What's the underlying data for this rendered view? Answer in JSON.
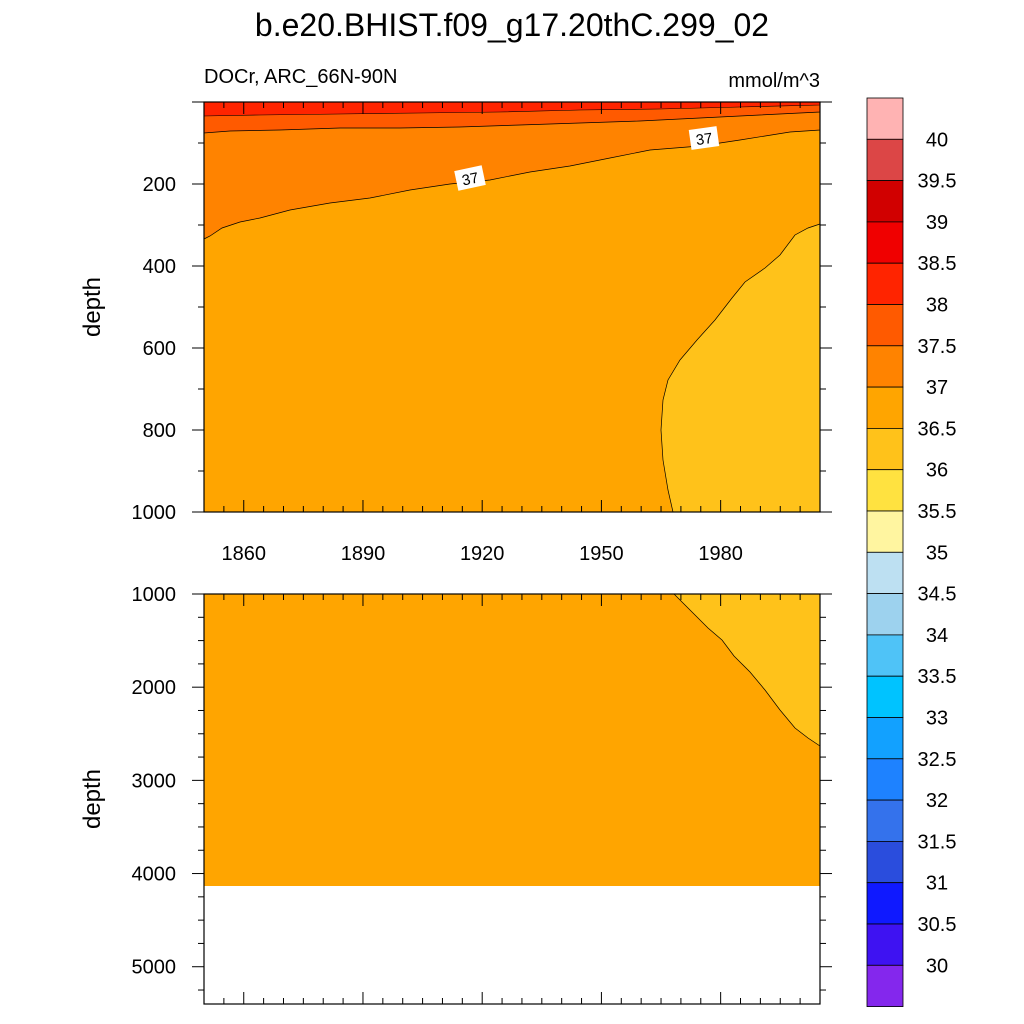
{
  "chart_data": {
    "type": "heatmap",
    "title": "b.e20.BHIST.f09_g17.20thC.299_02",
    "subtitle_left": "DOCr, ARC_66N-90N",
    "units": "mmol/m^3",
    "ylabel": "depth",
    "x_ticks": [
      "1860",
      "1890",
      "1920",
      "1950",
      "1980"
    ],
    "xlim": [
      1850,
      2005
    ],
    "colorbar": {
      "levels": [
        "40",
        "39.5",
        "39",
        "38.5",
        "38",
        "37.5",
        "37",
        "36.5",
        "36",
        "35.5",
        "35",
        "34.5",
        "34",
        "33.5",
        "33",
        "32.5",
        "32",
        "31.5",
        "31",
        "30.5",
        "30"
      ],
      "colors": [
        "#ffb3b3",
        "#dc4646",
        "#d10000",
        "#f00000",
        "#ff2400",
        "#ff5a00",
        "#ff8300",
        "#ffa500",
        "#ffc21a",
        "#ffe240",
        "#fff5a0",
        "#bde0f2",
        "#9dd2ee",
        "#4fc3f7",
        "#00c3ff",
        "#12a1ff",
        "#1e82ff",
        "#3472ec",
        "#2a4ddd",
        "#0f19ff",
        "#3e12f2",
        "#8427ed"
      ]
    },
    "panels": [
      {
        "name": "upper",
        "ylim": [
          1000,
          0
        ],
        "y_ticks": [
          "200",
          "400",
          "600",
          "800",
          "1000"
        ],
        "contour_labels": [
          "37",
          "37"
        ],
        "regions": [
          {
            "level_range": "37.5-38",
            "depth_top": 0,
            "depth_bottom": 15
          },
          {
            "level_range": "37-37.5",
            "depth_top": 15,
            "depth_bottom_1850": 340,
            "depth_bottom_2005": 70
          },
          {
            "level_range": "36.5-37",
            "note": "bulk of section"
          },
          {
            "level_range": "36-36.5",
            "x_start": 1968,
            "depth_top_2005": 300
          }
        ]
      },
      {
        "name": "lower",
        "ylim": [
          1000,
          5400
        ],
        "y_ticks": [
          "1000",
          "2000",
          "3000",
          "4000",
          "5000"
        ],
        "regions": [
          {
            "level_range": "36.5-37",
            "depth_bottom": 4120
          },
          {
            "level_range": "36-36.5",
            "x_start_at_1000": 1968,
            "depth_at_2005": 2600
          }
        ]
      }
    ]
  }
}
